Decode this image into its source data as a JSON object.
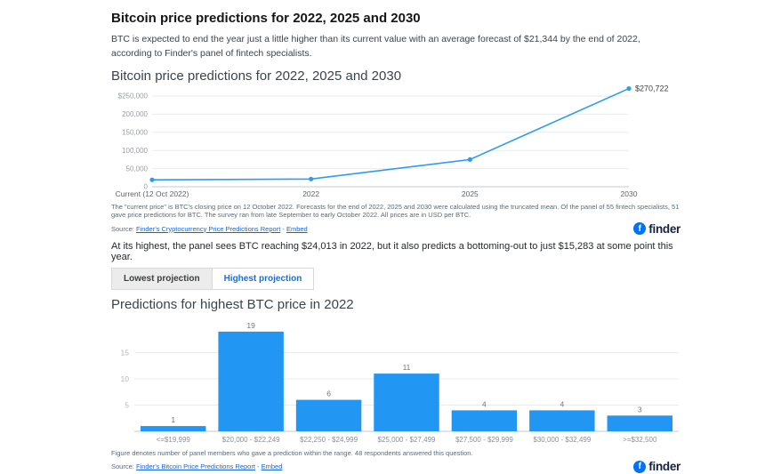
{
  "page": {
    "title": "Bitcoin price predictions for 2022, 2025 and 2030",
    "intro": "BTC is expected to end the year just a little higher than its current value with an average forecast of $21,344 by the end of 2022, according to Finder's panel of fintech specialists.",
    "highlight": "At its highest, the panel sees BTC reaching $24,013 in 2022, but it also predicts a bottoming-out to just $15,283 at some point this year."
  },
  "tabs": [
    {
      "label": "Lowest projection",
      "active": false
    },
    {
      "label": "Highest projection",
      "active": true
    }
  ],
  "chart_data": [
    {
      "type": "line",
      "title": "Bitcoin price predictions for 2022, 2025 and 2030",
      "categories": [
        "Current (12 Oct 2022)",
        "2022",
        "2025",
        "2030"
      ],
      "values": [
        19157,
        21344,
        75000,
        270722
      ],
      "annotation": "$270,722",
      "ylim": [
        0,
        250000
      ],
      "yticks": [
        0,
        50000,
        100000,
        150000,
        200000,
        250000
      ],
      "ytick_labels": [
        "0",
        "50,000",
        "100,000",
        "150,000",
        "200,000",
        "$250,000"
      ],
      "grid": true,
      "legend": "none",
      "color": "#2d9cf0"
    },
    {
      "type": "bar",
      "title": "Predictions for highest BTC price in 2022",
      "categories": [
        "<=$19,999",
        "$20,000 - $22,249",
        "$22,250 - $24,999",
        "$25,000 - $27,499",
        "$27,500 - $29,999",
        "$30,000 - $32,499",
        ">=$32,500"
      ],
      "values": [
        1,
        19,
        6,
        11,
        4,
        4,
        3
      ],
      "ylim": [
        0,
        20
      ],
      "yticks": [
        5,
        10,
        15
      ],
      "grid": true,
      "legend": "none",
      "color": "#2196f3"
    }
  ],
  "line_chart": {
    "footnote": "The \"current price\" is BTC's closing price on 12 October 2022. Forecasts for the end of 2022, 2025 and 2030 were calculated using the truncated mean. Of the panel of 55 fintech specialists, 51 gave price predictions for BTC. The survey ran from late September to early October 2022. All prices are in USD per BTC.",
    "source_prefix": "Source:",
    "source_link": "Finder's Cryptocurrency Price Predictions Report",
    "source_sep": " - ",
    "embed_link": "Embed"
  },
  "bar_chart": {
    "footnote": "Figure denotes number of panel members who gave a prediction within the range. 48 respondents answered this question.",
    "source_prefix": "Source:",
    "source_link": "Finder's Bitcoin Price Predictions Report",
    "source_sep": " - ",
    "embed_link": "Embed"
  },
  "logo": {
    "mark": "f",
    "text": "finder"
  }
}
